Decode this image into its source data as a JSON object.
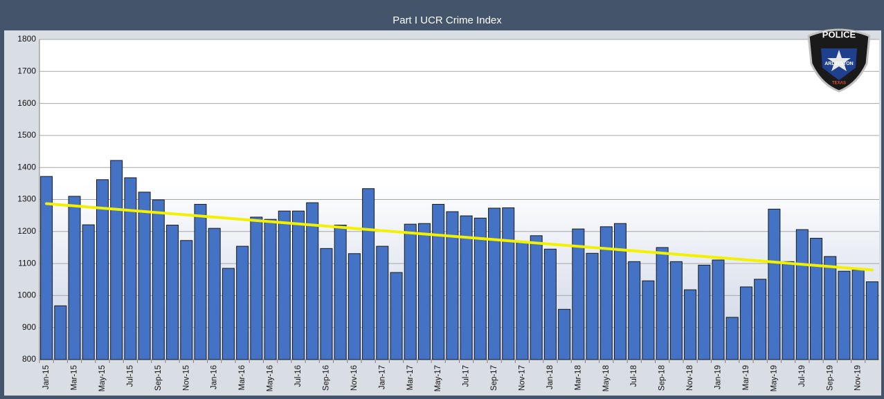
{
  "chart_data": {
    "type": "bar",
    "title": "Part I UCR Crime Index",
    "categories": [
      "Jan-15",
      null,
      "Mar-15",
      null,
      "May-15",
      null,
      "Jul-15",
      null,
      "Sep-15",
      null,
      "Nov-15",
      null,
      "Jan-16",
      null,
      "Mar-16",
      null,
      "May-16",
      null,
      "Jul-16",
      null,
      "Sep-16",
      null,
      "Nov-16",
      null,
      "Jan-17",
      null,
      "Mar-17",
      null,
      "May-17",
      null,
      "Jul-17",
      null,
      "Sep-17",
      null,
      "Nov-17",
      null,
      "Jan-18",
      null,
      "Mar-18",
      null,
      "May-18",
      null,
      "Jul-18",
      null,
      "Sep-18",
      null,
      "Nov-18",
      null,
      "Jan-19",
      null,
      "Mar-19",
      null,
      "May-19",
      null,
      "Jul-19",
      null,
      "Sep-19",
      null,
      "Nov-19",
      null
    ],
    "values": [
      1372,
      968,
      1310,
      1221,
      1362,
      1422,
      1368,
      1323,
      1299,
      1220,
      1172,
      1285,
      1210,
      1085,
      1154,
      1245,
      1238,
      1264,
      1264,
      1290,
      1147,
      1220,
      1131,
      1334,
      1154,
      1072,
      1223,
      1225,
      1285,
      1262,
      1249,
      1242,
      1273,
      1274,
      1165,
      1187,
      1145,
      957,
      1208,
      1132,
      1215,
      1225,
      1106,
      1046,
      1150,
      1106,
      1018,
      1095,
      1111,
      932,
      1027,
      1051,
      1270,
      1106,
      1206,
      1179,
      1122,
      1076,
      1080,
      1043
    ],
    "color": "#4472c4",
    "trend": {
      "start": 1287,
      "end": 1080,
      "color": "#f2f200"
    },
    "ylim": [
      800,
      1800
    ],
    "yticks": [
      800,
      900,
      1000,
      1100,
      1200,
      1300,
      1400,
      1500,
      1600,
      1700,
      1800
    ],
    "grid": true
  },
  "logo": {
    "top": "POLICE",
    "city": "ARLINGTON",
    "state": "TEXAS"
  }
}
